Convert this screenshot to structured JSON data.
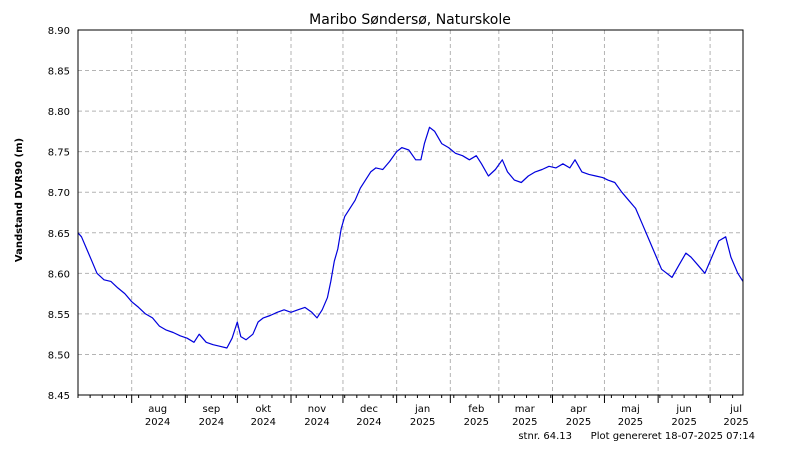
{
  "chart_data": {
    "type": "line",
    "title": "Maribo Søndersø, Naturskole",
    "ylabel": "Vandstand DVR90 (m)",
    "xlabel": "",
    "ylim": [
      8.45,
      8.9
    ],
    "yticks": [
      "8.45",
      "8.50",
      "8.55",
      "8.60",
      "8.65",
      "8.70",
      "8.75",
      "8.80",
      "8.85",
      "8.90"
    ],
    "xlim": [
      "2024-07-01",
      "2025-07-20"
    ],
    "xticks": [
      {
        "month": "aug",
        "year": "2024",
        "date": "2024-08-16"
      },
      {
        "month": "sep",
        "year": "2024",
        "date": "2024-09-16"
      },
      {
        "month": "okt",
        "year": "2024",
        "date": "2024-10-16"
      },
      {
        "month": "nov",
        "year": "2024",
        "date": "2024-11-16"
      },
      {
        "month": "dec",
        "year": "2024",
        "date": "2024-12-16"
      },
      {
        "month": "jan",
        "year": "2025",
        "date": "2025-01-16"
      },
      {
        "month": "feb",
        "year": "2025",
        "date": "2025-02-16"
      },
      {
        "month": "mar",
        "year": "2025",
        "date": "2025-03-16"
      },
      {
        "month": "apr",
        "year": "2025",
        "date": "2025-04-16"
      },
      {
        "month": "maj",
        "year": "2025",
        "date": "2025-05-16"
      },
      {
        "month": "jun",
        "year": "2025",
        "date": "2025-06-16"
      },
      {
        "month": "jul",
        "year": "2025",
        "date": "2025-07-16"
      }
    ],
    "month_boundaries": [
      "2024-08-01",
      "2024-09-01",
      "2024-10-01",
      "2024-11-01",
      "2024-12-01",
      "2025-01-01",
      "2025-02-01",
      "2025-03-01",
      "2025-04-01",
      "2025-05-01",
      "2025-06-01",
      "2025-07-01"
    ],
    "grid": true,
    "series": [
      {
        "color": "#0000dd",
        "points": [
          [
            "2024-07-01",
            8.65
          ],
          [
            "2024-07-03",
            8.645
          ],
          [
            "2024-07-06",
            8.63
          ],
          [
            "2024-07-09",
            8.615
          ],
          [
            "2024-07-12",
            8.6
          ],
          [
            "2024-07-16",
            8.592
          ],
          [
            "2024-07-20",
            8.59
          ],
          [
            "2024-07-24",
            8.582
          ],
          [
            "2024-07-28",
            8.575
          ],
          [
            "2024-08-01",
            8.565
          ],
          [
            "2024-08-05",
            8.558
          ],
          [
            "2024-08-09",
            8.55
          ],
          [
            "2024-08-13",
            8.545
          ],
          [
            "2024-08-17",
            8.535
          ],
          [
            "2024-08-21",
            8.53
          ],
          [
            "2024-08-25",
            8.527
          ],
          [
            "2024-08-29",
            8.523
          ],
          [
            "2024-09-02",
            8.52
          ],
          [
            "2024-09-06",
            8.515
          ],
          [
            "2024-09-09",
            8.525
          ],
          [
            "2024-09-13",
            8.515
          ],
          [
            "2024-09-17",
            8.512
          ],
          [
            "2024-09-21",
            8.51
          ],
          [
            "2024-09-25",
            8.508
          ],
          [
            "2024-09-28",
            8.52
          ],
          [
            "2024-10-01",
            8.54
          ],
          [
            "2024-10-03",
            8.522
          ],
          [
            "2024-10-06",
            8.518
          ],
          [
            "2024-10-10",
            8.525
          ],
          [
            "2024-10-13",
            8.54
          ],
          [
            "2024-10-16",
            8.545
          ],
          [
            "2024-10-20",
            8.548
          ],
          [
            "2024-10-24",
            8.552
          ],
          [
            "2024-10-28",
            8.555
          ],
          [
            "2024-11-01",
            8.552
          ],
          [
            "2024-11-05",
            8.555
          ],
          [
            "2024-11-09",
            8.558
          ],
          [
            "2024-11-13",
            8.552
          ],
          [
            "2024-11-16",
            8.545
          ],
          [
            "2024-11-19",
            8.555
          ],
          [
            "2024-11-22",
            8.57
          ],
          [
            "2024-11-24",
            8.59
          ],
          [
            "2024-11-26",
            8.615
          ],
          [
            "2024-11-28",
            8.63
          ],
          [
            "2024-11-30",
            8.655
          ],
          [
            "2024-12-02",
            8.67
          ],
          [
            "2024-12-05",
            8.68
          ],
          [
            "2024-12-08",
            8.69
          ],
          [
            "2024-12-11",
            8.705
          ],
          [
            "2024-12-14",
            8.715
          ],
          [
            "2024-12-17",
            8.725
          ],
          [
            "2024-12-20",
            8.73
          ],
          [
            "2024-12-24",
            8.728
          ],
          [
            "2024-12-28",
            8.738
          ],
          [
            "2025-01-01",
            8.75
          ],
          [
            "2025-01-04",
            8.755
          ],
          [
            "2025-01-08",
            8.752
          ],
          [
            "2025-01-12",
            8.74
          ],
          [
            "2025-01-15",
            8.74
          ],
          [
            "2025-01-17",
            8.76
          ],
          [
            "2025-01-20",
            8.78
          ],
          [
            "2025-01-23",
            8.775
          ],
          [
            "2025-01-27",
            8.76
          ],
          [
            "2025-01-31",
            8.755
          ],
          [
            "2025-02-04",
            8.748
          ],
          [
            "2025-02-08",
            8.745
          ],
          [
            "2025-02-12",
            8.74
          ],
          [
            "2025-02-16",
            8.745
          ],
          [
            "2025-02-19",
            8.735
          ],
          [
            "2025-02-23",
            8.72
          ],
          [
            "2025-02-27",
            8.728
          ],
          [
            "2025-03-03",
            8.74
          ],
          [
            "2025-03-06",
            8.725
          ],
          [
            "2025-03-10",
            8.715
          ],
          [
            "2025-03-14",
            8.712
          ],
          [
            "2025-03-18",
            8.72
          ],
          [
            "2025-03-22",
            8.725
          ],
          [
            "2025-03-26",
            8.728
          ],
          [
            "2025-03-30",
            8.732
          ],
          [
            "2025-04-03",
            8.73
          ],
          [
            "2025-04-07",
            8.735
          ],
          [
            "2025-04-11",
            8.73
          ],
          [
            "2025-04-14",
            8.74
          ],
          [
            "2025-04-18",
            8.725
          ],
          [
            "2025-04-22",
            8.722
          ],
          [
            "2025-04-26",
            8.72
          ],
          [
            "2025-04-30",
            8.718
          ],
          [
            "2025-05-03",
            8.715
          ],
          [
            "2025-05-07",
            8.712
          ],
          [
            "2025-05-11",
            8.7
          ],
          [
            "2025-05-15",
            8.69
          ],
          [
            "2025-05-19",
            8.68
          ],
          [
            "2025-05-23",
            8.66
          ],
          [
            "2025-05-27",
            8.64
          ],
          [
            "2025-05-31",
            8.62
          ],
          [
            "2025-06-03",
            8.605
          ],
          [
            "2025-06-06",
            8.6
          ],
          [
            "2025-06-09",
            8.595
          ],
          [
            "2025-06-13",
            8.61
          ],
          [
            "2025-06-17",
            8.625
          ],
          [
            "2025-06-20",
            8.62
          ],
          [
            "2025-06-24",
            8.61
          ],
          [
            "2025-06-28",
            8.6
          ],
          [
            "2025-07-02",
            8.62
          ],
          [
            "2025-07-06",
            8.64
          ],
          [
            "2025-07-10",
            8.645
          ],
          [
            "2025-07-13",
            8.62
          ],
          [
            "2025-07-17",
            8.6
          ],
          [
            "2025-07-20",
            8.59
          ]
        ]
      }
    ]
  },
  "footer": {
    "station": "stnr. 64.13",
    "generated": "Plot genereret 18-07-2025 07:14"
  }
}
